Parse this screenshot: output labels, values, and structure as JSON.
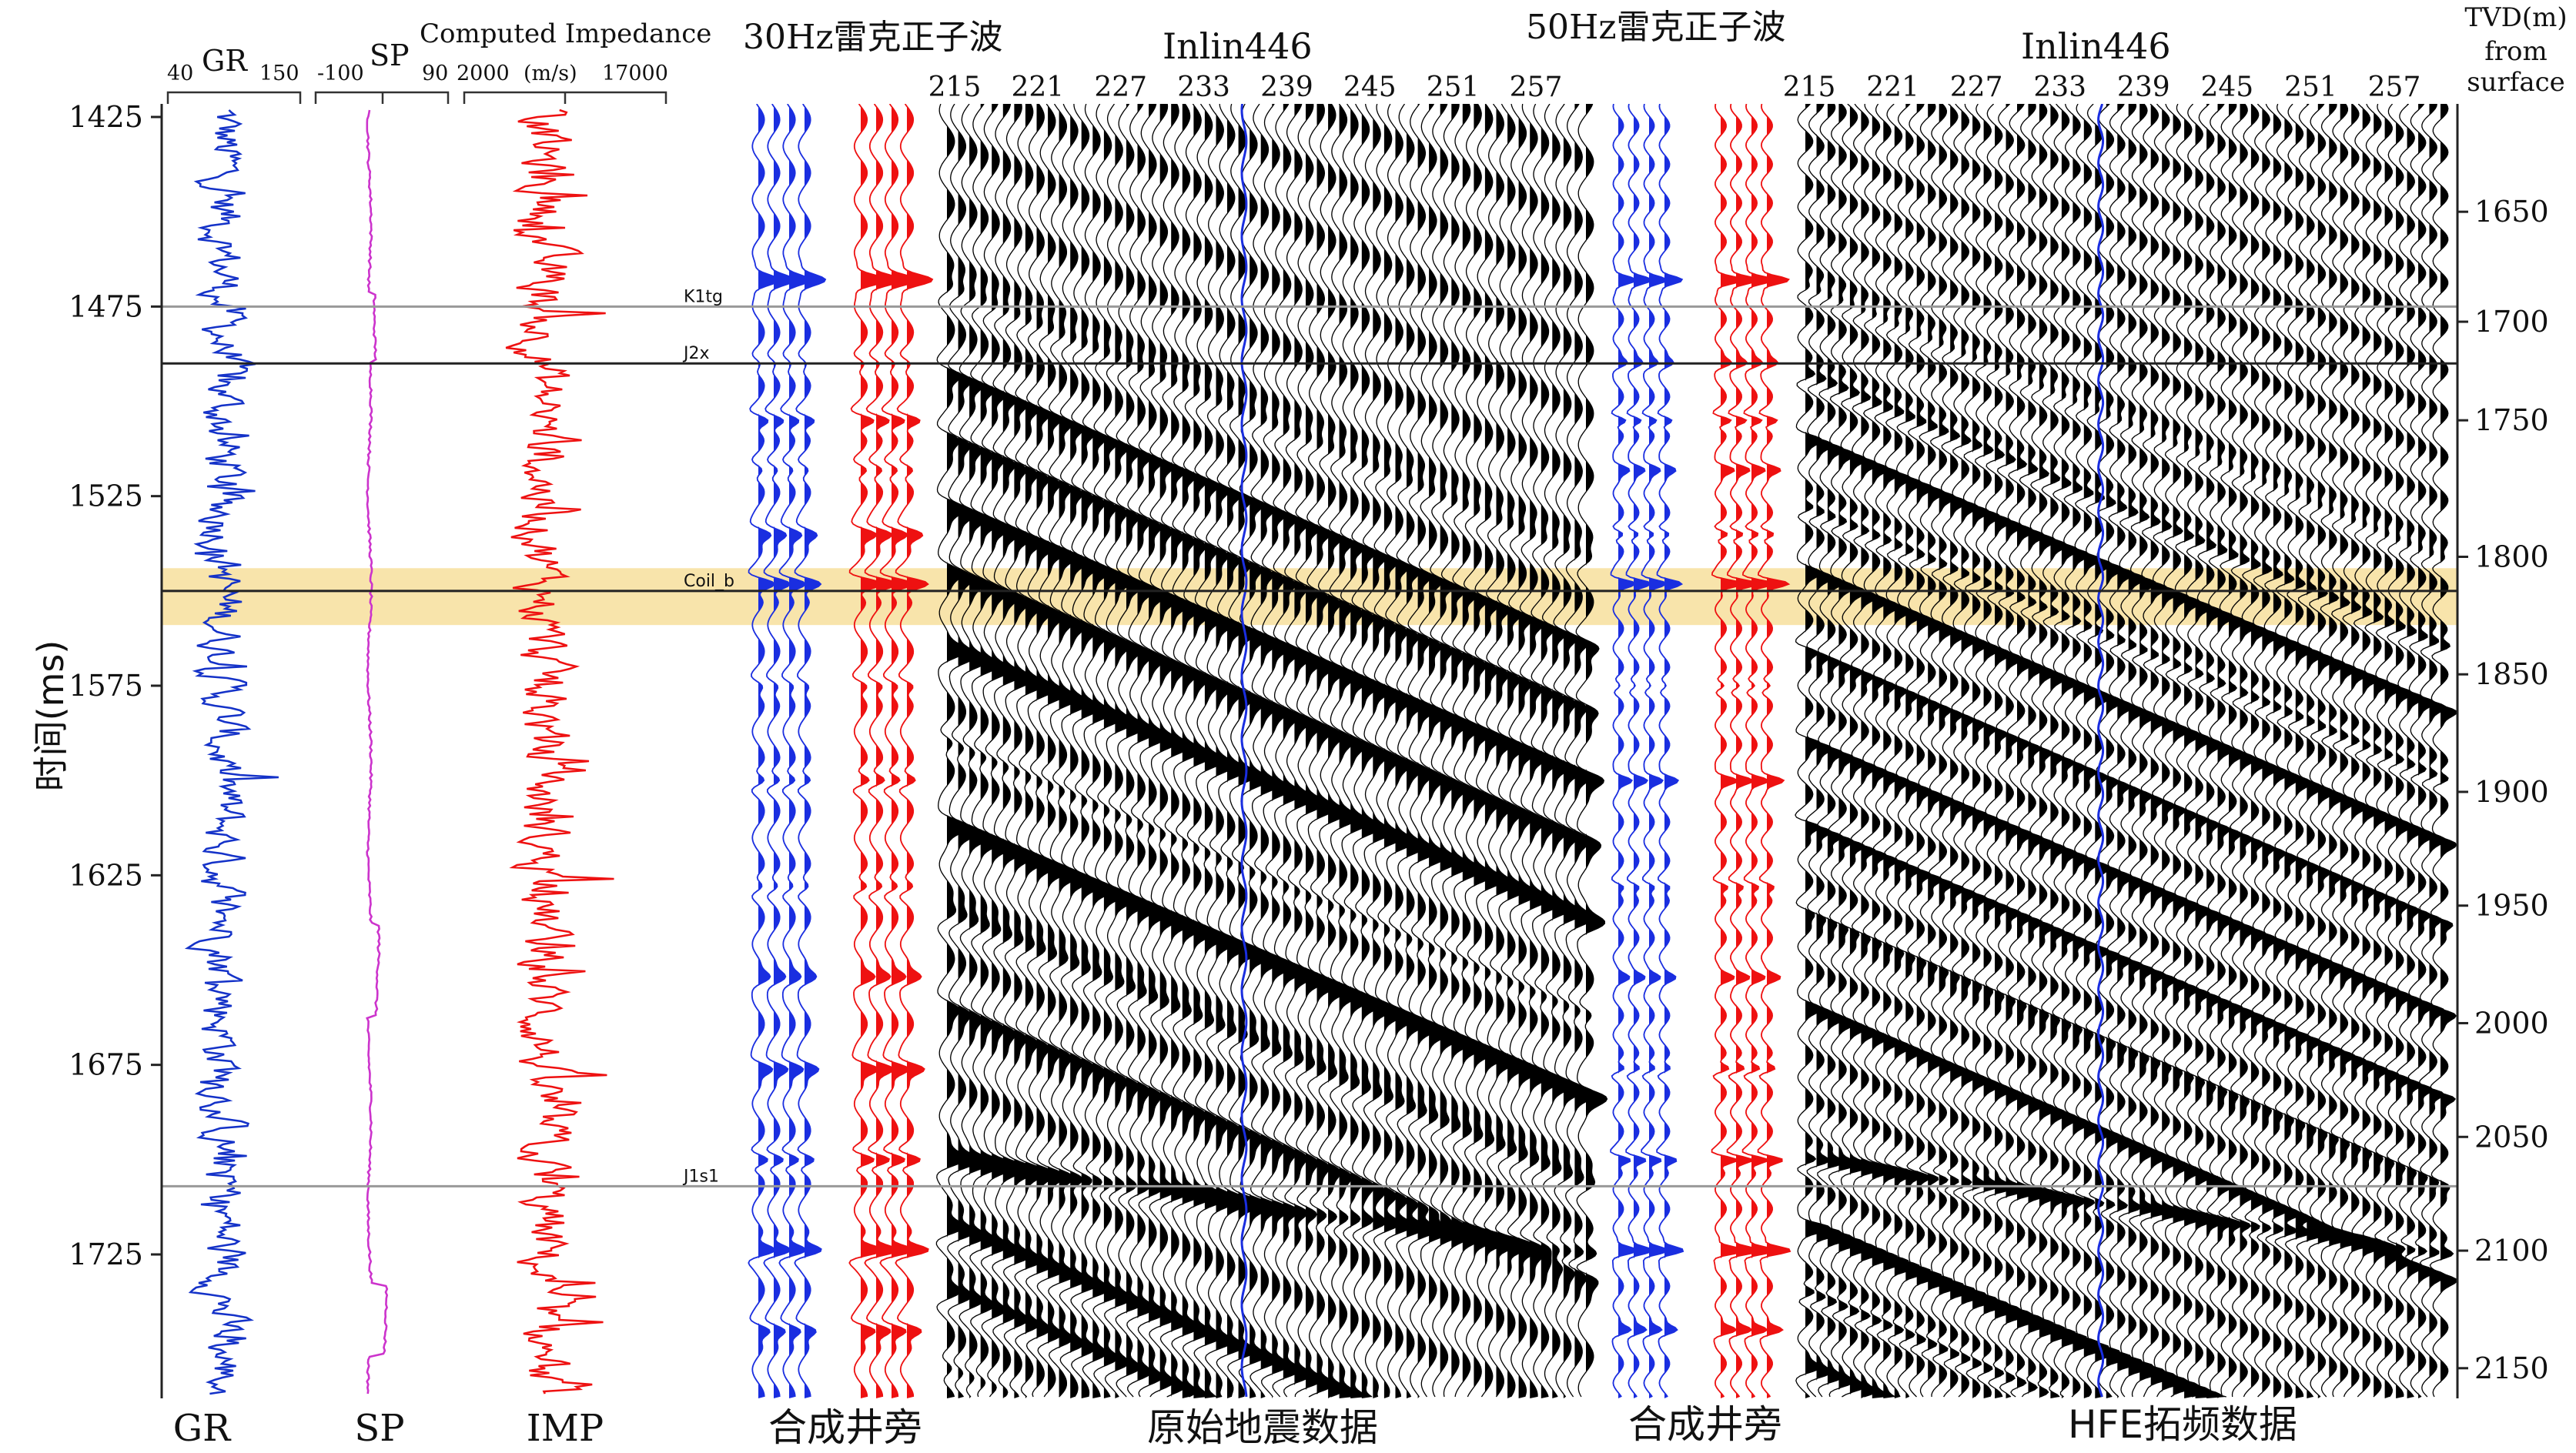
{
  "chart_data": {
    "type": "line",
    "time_axis": {
      "label": "时间(ms)",
      "ticks": [
        1425,
        1475,
        1525,
        1575,
        1625,
        1675,
        1725
      ],
      "range": [
        1425,
        1765
      ]
    },
    "depth_axis": {
      "label_lines": [
        "TVD(m)",
        "from",
        "surface"
      ],
      "ticks": [
        1650,
        1700,
        1750,
        1800,
        1850,
        1900,
        1950,
        2000,
        2050,
        2100,
        2150
      ],
      "tick_times": [
        1450,
        1479,
        1505,
        1541,
        1572,
        1603,
        1633,
        1664,
        1694,
        1724,
        1755
      ]
    },
    "horizons": [
      {
        "name": "K1tg",
        "time": 1475,
        "color": "#999999"
      },
      {
        "name": "J2x",
        "time": 1490,
        "color": "#222222"
      },
      {
        "name": "Coil_b",
        "time": 1550,
        "color": "#222222"
      },
      {
        "name": "J1s1",
        "time": 1707,
        "color": "#999999"
      }
    ],
    "highlight_band": {
      "time_range": [
        1544,
        1559
      ],
      "color": "#f8e3a6"
    },
    "logs": [
      {
        "name": "GR",
        "header": "GR",
        "scale": [
          "40",
          "150"
        ],
        "range": [
          40,
          150
        ],
        "color": "#1432c8",
        "bottom_label": "GR"
      },
      {
        "name": "SP",
        "header": "SP",
        "scale": [
          "-100",
          "90"
        ],
        "range": [
          -100,
          90
        ],
        "color": "#cc33cc",
        "bottom_label": "SP"
      },
      {
        "name": "Computed Impedance",
        "header": "Computed Impedance",
        "scale": [
          "2000",
          "(m/s)",
          "17000"
        ],
        "range": [
          2000,
          17000
        ],
        "color": "#ee1111",
        "bottom_label": "IMP"
      }
    ],
    "panels": [
      {
        "wavelet_title": "30Hz雷克正子波",
        "section_title": "Inlin446",
        "trace_ticks": [
          "215",
          "221",
          "227",
          "233",
          "239",
          "245",
          "251",
          "257"
        ],
        "synthetic_label": "合成井旁",
        "section_label": "原始地震数据"
      },
      {
        "wavelet_title": "50Hz雷克正子波",
        "section_title": "Inlin446",
        "trace_ticks": [
          "215",
          "221",
          "227",
          "233",
          "239",
          "245",
          "251",
          "257"
        ],
        "synthetic_label": "合成井旁",
        "section_label": "HFE拓频数据"
      }
    ],
    "trace_colors": {
      "synthetic": "#1a2ee0",
      "well_side": "#ee1111",
      "seismic": "#000000",
      "well_trace": "#1a2ee0"
    }
  }
}
